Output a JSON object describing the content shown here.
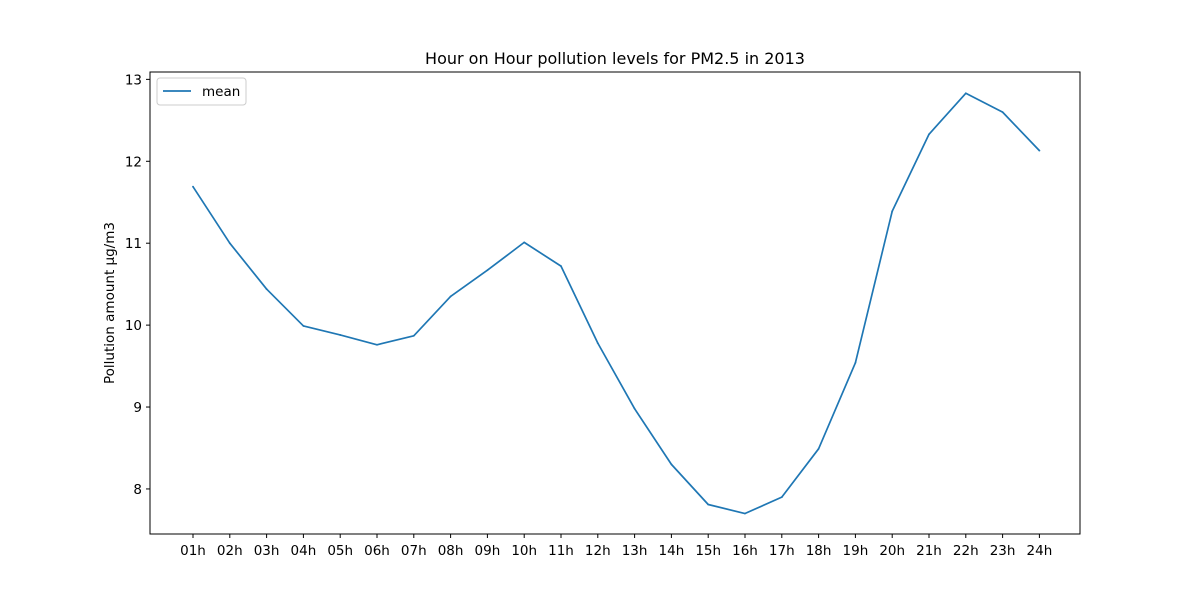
{
  "chart_data": {
    "type": "line",
    "title": "Hour on Hour pollution levels for PM2.5 in 2013",
    "xlabel": "",
    "ylabel": "Pollution amount µg/m3",
    "categories": [
      "01h",
      "02h",
      "03h",
      "04h",
      "05h",
      "06h",
      "07h",
      "08h",
      "09h",
      "10h",
      "11h",
      "12h",
      "13h",
      "14h",
      "15h",
      "16h",
      "17h",
      "18h",
      "19h",
      "20h",
      "21h",
      "22h",
      "23h",
      "24h"
    ],
    "series": [
      {
        "name": "mean",
        "color": "#1f77b4",
        "values": [
          11.69,
          11.0,
          10.44,
          9.99,
          9.88,
          9.76,
          9.87,
          10.35,
          10.67,
          11.01,
          10.72,
          9.78,
          8.98,
          8.3,
          7.81,
          7.7,
          7.9,
          8.49,
          9.54,
          11.39,
          12.33,
          12.83,
          12.6,
          12.13
        ]
      }
    ],
    "yticks": [
      8,
      9,
      10,
      11,
      12,
      13
    ],
    "ylim": [
      7.45,
      13.09
    ],
    "grid": false,
    "legend": "upper-left"
  }
}
